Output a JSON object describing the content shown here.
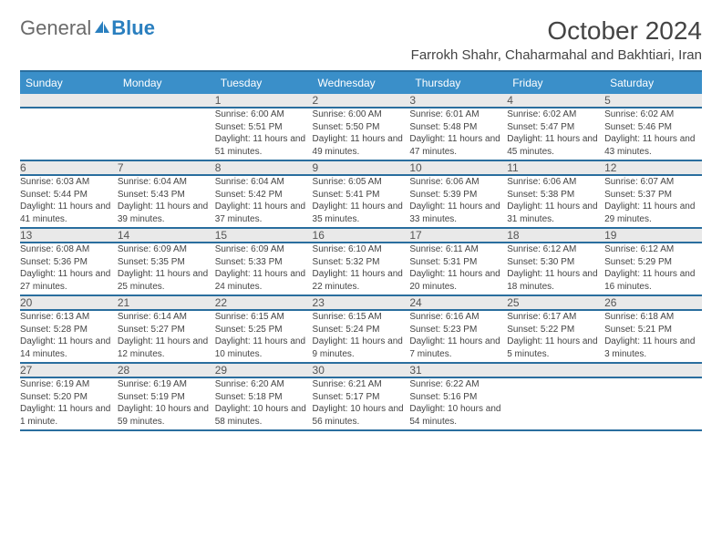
{
  "brand": {
    "part1": "General",
    "part2": "Blue"
  },
  "title": "October 2024",
  "location": "Farrokh Shahr, Chaharmahal and Bakhtiari, Iran",
  "colors": {
    "header_bg": "#3a8fc9",
    "header_border": "#2a6e9e",
    "daynum_bg": "#e9e9e9",
    "text": "#444444",
    "brand_gray": "#6a6a6a",
    "brand_blue": "#2a7fbf"
  },
  "weekdays": [
    "Sunday",
    "Monday",
    "Tuesday",
    "Wednesday",
    "Thursday",
    "Friday",
    "Saturday"
  ],
  "weeks": [
    {
      "nums": [
        "",
        "",
        "1",
        "2",
        "3",
        "4",
        "5"
      ],
      "cells": [
        {
          "sunrise": "",
          "sunset": "",
          "daylight": ""
        },
        {
          "sunrise": "",
          "sunset": "",
          "daylight": ""
        },
        {
          "sunrise": "Sunrise: 6:00 AM",
          "sunset": "Sunset: 5:51 PM",
          "daylight": "Daylight: 11 hours and 51 minutes."
        },
        {
          "sunrise": "Sunrise: 6:00 AM",
          "sunset": "Sunset: 5:50 PM",
          "daylight": "Daylight: 11 hours and 49 minutes."
        },
        {
          "sunrise": "Sunrise: 6:01 AM",
          "sunset": "Sunset: 5:48 PM",
          "daylight": "Daylight: 11 hours and 47 minutes."
        },
        {
          "sunrise": "Sunrise: 6:02 AM",
          "sunset": "Sunset: 5:47 PM",
          "daylight": "Daylight: 11 hours and 45 minutes."
        },
        {
          "sunrise": "Sunrise: 6:02 AM",
          "sunset": "Sunset: 5:46 PM",
          "daylight": "Daylight: 11 hours and 43 minutes."
        }
      ]
    },
    {
      "nums": [
        "6",
        "7",
        "8",
        "9",
        "10",
        "11",
        "12"
      ],
      "cells": [
        {
          "sunrise": "Sunrise: 6:03 AM",
          "sunset": "Sunset: 5:44 PM",
          "daylight": "Daylight: 11 hours and 41 minutes."
        },
        {
          "sunrise": "Sunrise: 6:04 AM",
          "sunset": "Sunset: 5:43 PM",
          "daylight": "Daylight: 11 hours and 39 minutes."
        },
        {
          "sunrise": "Sunrise: 6:04 AM",
          "sunset": "Sunset: 5:42 PM",
          "daylight": "Daylight: 11 hours and 37 minutes."
        },
        {
          "sunrise": "Sunrise: 6:05 AM",
          "sunset": "Sunset: 5:41 PM",
          "daylight": "Daylight: 11 hours and 35 minutes."
        },
        {
          "sunrise": "Sunrise: 6:06 AM",
          "sunset": "Sunset: 5:39 PM",
          "daylight": "Daylight: 11 hours and 33 minutes."
        },
        {
          "sunrise": "Sunrise: 6:06 AM",
          "sunset": "Sunset: 5:38 PM",
          "daylight": "Daylight: 11 hours and 31 minutes."
        },
        {
          "sunrise": "Sunrise: 6:07 AM",
          "sunset": "Sunset: 5:37 PM",
          "daylight": "Daylight: 11 hours and 29 minutes."
        }
      ]
    },
    {
      "nums": [
        "13",
        "14",
        "15",
        "16",
        "17",
        "18",
        "19"
      ],
      "cells": [
        {
          "sunrise": "Sunrise: 6:08 AM",
          "sunset": "Sunset: 5:36 PM",
          "daylight": "Daylight: 11 hours and 27 minutes."
        },
        {
          "sunrise": "Sunrise: 6:09 AM",
          "sunset": "Sunset: 5:35 PM",
          "daylight": "Daylight: 11 hours and 25 minutes."
        },
        {
          "sunrise": "Sunrise: 6:09 AM",
          "sunset": "Sunset: 5:33 PM",
          "daylight": "Daylight: 11 hours and 24 minutes."
        },
        {
          "sunrise": "Sunrise: 6:10 AM",
          "sunset": "Sunset: 5:32 PM",
          "daylight": "Daylight: 11 hours and 22 minutes."
        },
        {
          "sunrise": "Sunrise: 6:11 AM",
          "sunset": "Sunset: 5:31 PM",
          "daylight": "Daylight: 11 hours and 20 minutes."
        },
        {
          "sunrise": "Sunrise: 6:12 AM",
          "sunset": "Sunset: 5:30 PM",
          "daylight": "Daylight: 11 hours and 18 minutes."
        },
        {
          "sunrise": "Sunrise: 6:12 AM",
          "sunset": "Sunset: 5:29 PM",
          "daylight": "Daylight: 11 hours and 16 minutes."
        }
      ]
    },
    {
      "nums": [
        "20",
        "21",
        "22",
        "23",
        "24",
        "25",
        "26"
      ],
      "cells": [
        {
          "sunrise": "Sunrise: 6:13 AM",
          "sunset": "Sunset: 5:28 PM",
          "daylight": "Daylight: 11 hours and 14 minutes."
        },
        {
          "sunrise": "Sunrise: 6:14 AM",
          "sunset": "Sunset: 5:27 PM",
          "daylight": "Daylight: 11 hours and 12 minutes."
        },
        {
          "sunrise": "Sunrise: 6:15 AM",
          "sunset": "Sunset: 5:25 PM",
          "daylight": "Daylight: 11 hours and 10 minutes."
        },
        {
          "sunrise": "Sunrise: 6:15 AM",
          "sunset": "Sunset: 5:24 PM",
          "daylight": "Daylight: 11 hours and 9 minutes."
        },
        {
          "sunrise": "Sunrise: 6:16 AM",
          "sunset": "Sunset: 5:23 PM",
          "daylight": "Daylight: 11 hours and 7 minutes."
        },
        {
          "sunrise": "Sunrise: 6:17 AM",
          "sunset": "Sunset: 5:22 PM",
          "daylight": "Daylight: 11 hours and 5 minutes."
        },
        {
          "sunrise": "Sunrise: 6:18 AM",
          "sunset": "Sunset: 5:21 PM",
          "daylight": "Daylight: 11 hours and 3 minutes."
        }
      ]
    },
    {
      "nums": [
        "27",
        "28",
        "29",
        "30",
        "31",
        "",
        ""
      ],
      "cells": [
        {
          "sunrise": "Sunrise: 6:19 AM",
          "sunset": "Sunset: 5:20 PM",
          "daylight": "Daylight: 11 hours and 1 minute."
        },
        {
          "sunrise": "Sunrise: 6:19 AM",
          "sunset": "Sunset: 5:19 PM",
          "daylight": "Daylight: 10 hours and 59 minutes."
        },
        {
          "sunrise": "Sunrise: 6:20 AM",
          "sunset": "Sunset: 5:18 PM",
          "daylight": "Daylight: 10 hours and 58 minutes."
        },
        {
          "sunrise": "Sunrise: 6:21 AM",
          "sunset": "Sunset: 5:17 PM",
          "daylight": "Daylight: 10 hours and 56 minutes."
        },
        {
          "sunrise": "Sunrise: 6:22 AM",
          "sunset": "Sunset: 5:16 PM",
          "daylight": "Daylight: 10 hours and 54 minutes."
        },
        {
          "sunrise": "",
          "sunset": "",
          "daylight": ""
        },
        {
          "sunrise": "",
          "sunset": "",
          "daylight": ""
        }
      ]
    }
  ]
}
